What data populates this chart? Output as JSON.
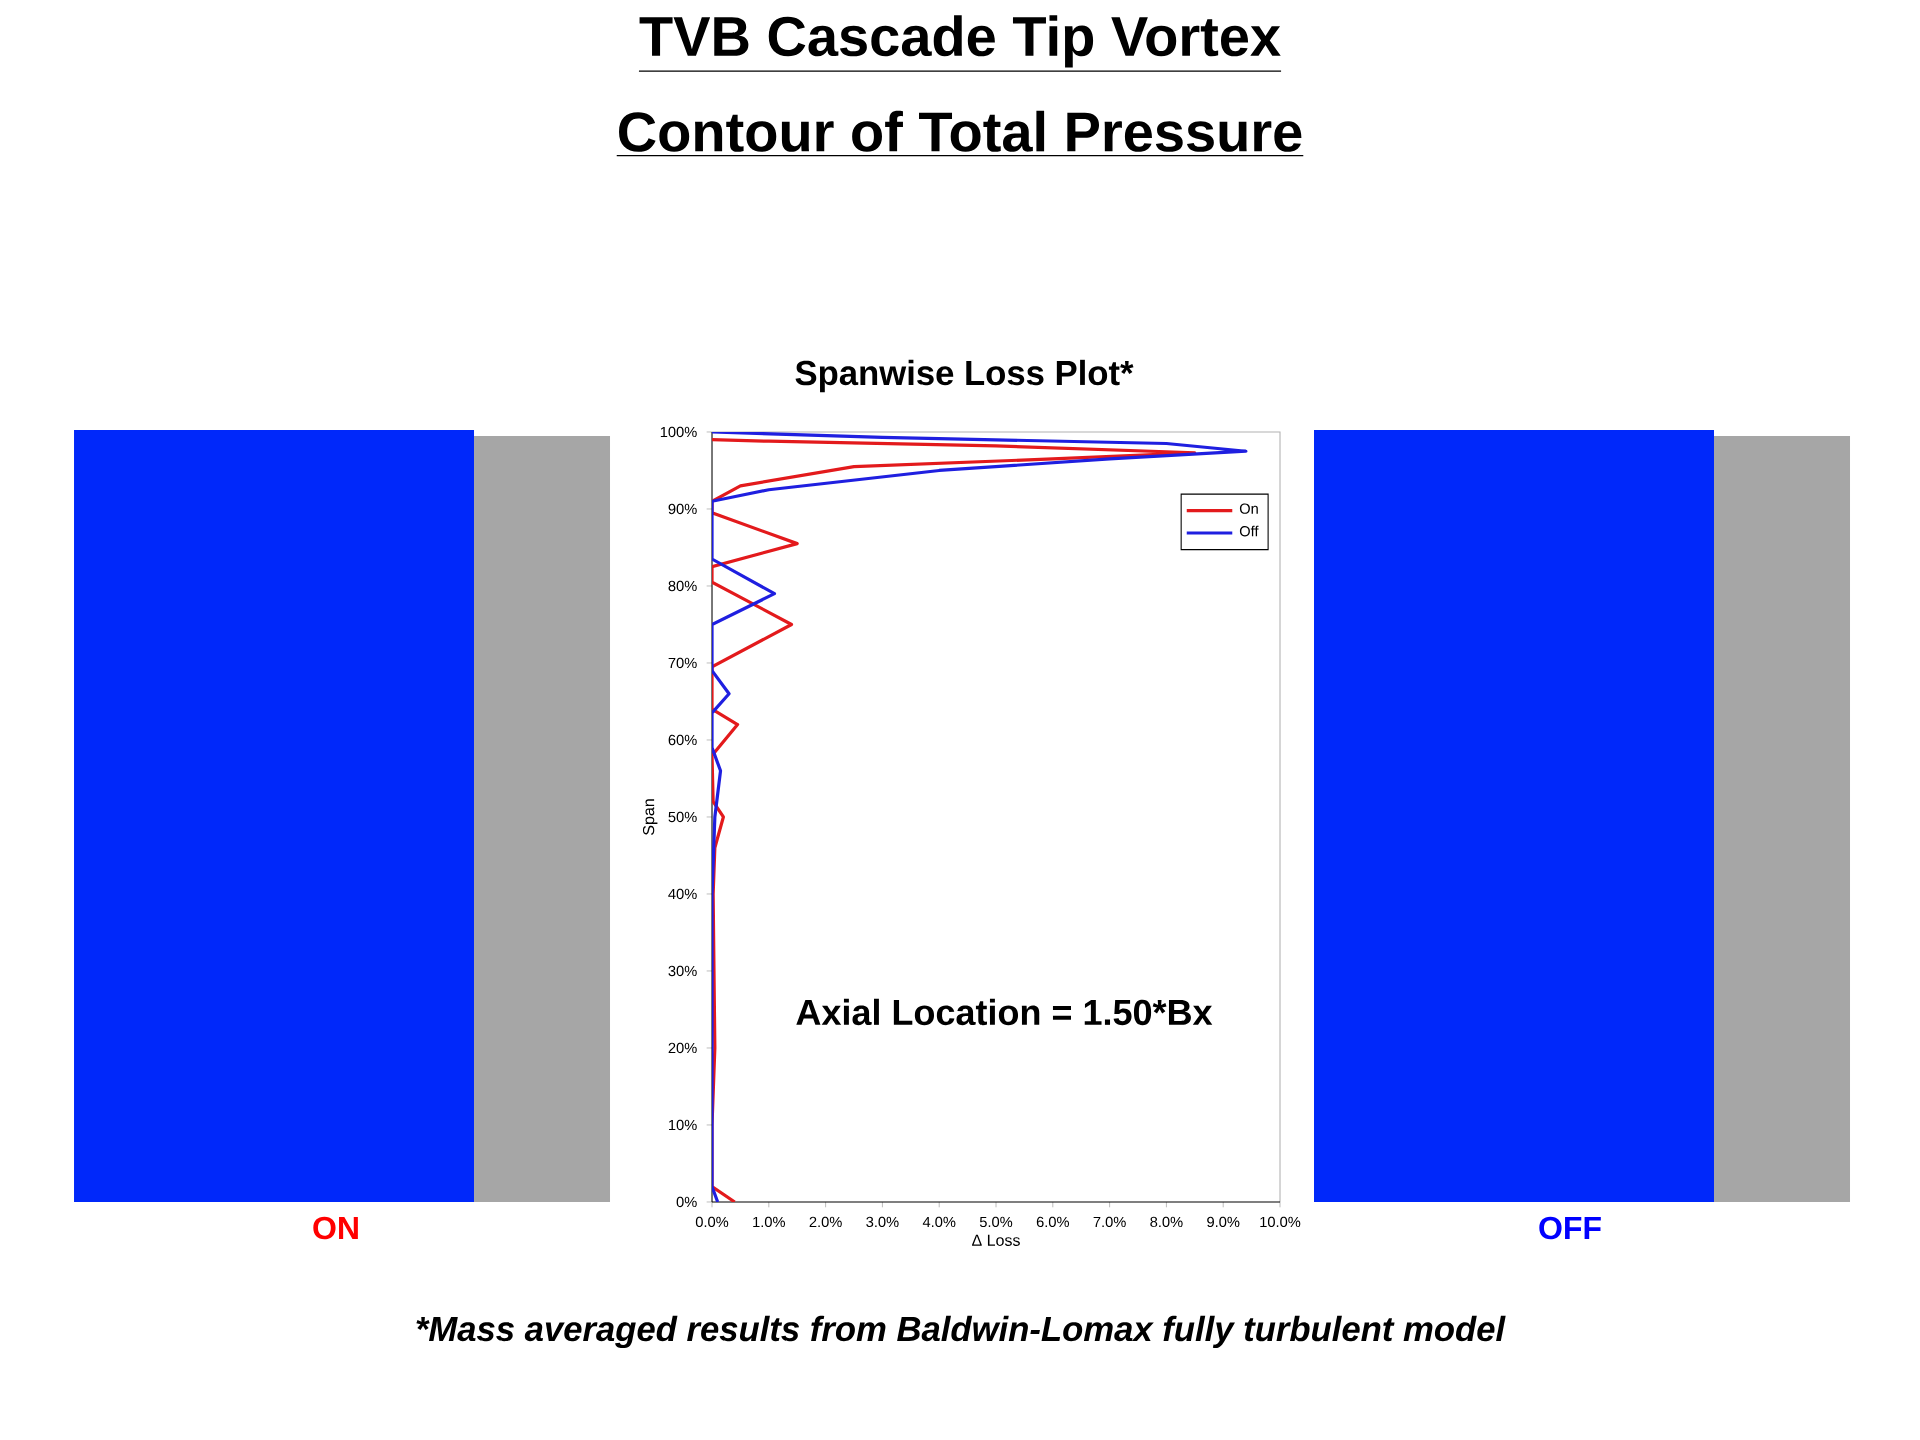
{
  "chart_data": {
    "type": "line",
    "title": "Spanwise Loss Plot*",
    "xlabel": "Δ Loss",
    "ylabel": "Span",
    "xlim": [
      0,
      10
    ],
    "ylim": [
      0,
      100
    ],
    "xticks": [
      {
        "value": 0,
        "label": "0.0%"
      },
      {
        "value": 1,
        "label": "1.0%"
      },
      {
        "value": 2,
        "label": "2.0%"
      },
      {
        "value": 3,
        "label": "3.0%"
      },
      {
        "value": 4,
        "label": "4.0%"
      },
      {
        "value": 5,
        "label": "5.0%"
      },
      {
        "value": 6,
        "label": "6.0%"
      },
      {
        "value": 7,
        "label": "7.0%"
      },
      {
        "value": 8,
        "label": "8.0%"
      },
      {
        "value": 9,
        "label": "9.0%"
      },
      {
        "value": 10,
        "label": "10.0%"
      }
    ],
    "yticks": [
      {
        "value": 0,
        "label": "0%"
      },
      {
        "value": 10,
        "label": "10%"
      },
      {
        "value": 20,
        "label": "20%"
      },
      {
        "value": 30,
        "label": "30%"
      },
      {
        "value": 40,
        "label": "40%"
      },
      {
        "value": 50,
        "label": "50%"
      },
      {
        "value": 60,
        "label": "60%"
      },
      {
        "value": 70,
        "label": "70%"
      },
      {
        "value": 80,
        "label": "80%"
      },
      {
        "value": 90,
        "label": "90%"
      },
      {
        "value": 100,
        "label": "100%"
      }
    ],
    "legend": "top right",
    "marker": "none",
    "line_style": "solid",
    "series": [
      {
        "name": "On",
        "color": "#e31a1c",
        "x": [
          0.4,
          0,
          0,
          0.05,
          0.02,
          0.05,
          0.2,
          0.02,
          0,
          0.45,
          0,
          0,
          1.4,
          0,
          0,
          1.5,
          0,
          0,
          0.5,
          2.5,
          6,
          8.5,
          5,
          1,
          0
        ],
        "values": [
          0,
          2,
          10,
          20,
          40,
          46,
          50,
          52,
          58,
          62,
          64,
          69.5,
          75,
          80.5,
          82.5,
          85.5,
          89.5,
          91,
          93,
          95.5,
          96.5,
          97.3,
          98.2,
          98.8,
          99
        ]
      },
      {
        "name": "Off",
        "color": "#1f1fe0",
        "x": [
          0.1,
          0,
          0,
          0.05,
          0.15,
          0,
          0,
          0.3,
          0,
          0,
          1.1,
          0,
          0,
          1,
          4,
          7,
          9.4,
          8,
          3,
          0
        ],
        "values": [
          0,
          2,
          40,
          50,
          56,
          59,
          63.5,
          66,
          69,
          75,
          79,
          83.5,
          91,
          92.5,
          95,
          96.5,
          97.5,
          98.5,
          99.3,
          100
        ]
      }
    ],
    "annotations": [
      "TVB Cascade Tip Vortex",
      "Contour of Total Pressure",
      "ON",
      "OFF",
      "Axial Location = 1.50*Bx",
      "*Mass averaged results from Baldwin-Lomax fully turbulent model"
    ]
  }
}
